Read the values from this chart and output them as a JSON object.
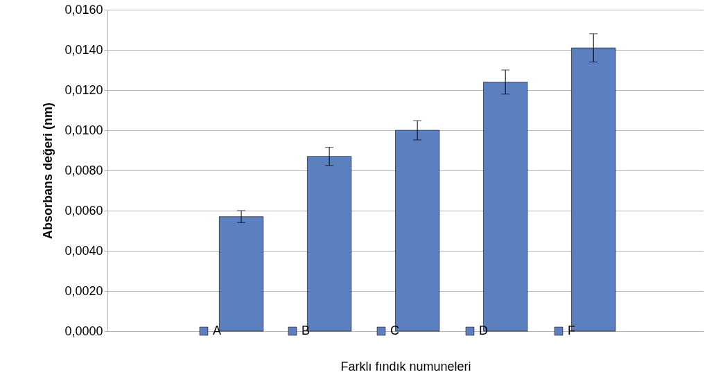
{
  "chart_data": {
    "type": "bar",
    "xlabel": "Farklı fındık numuneleri",
    "ylabel": "Absorbans değeri (nm)",
    "categories": [
      null,
      null,
      null,
      null,
      null,
      null,
      null
    ],
    "series": [
      {
        "name": "A",
        "color": "#5b7fbf",
        "values": [
          null,
          0.0057,
          null,
          null,
          null,
          null,
          null
        ],
        "errors": [
          null,
          0.0003,
          null,
          null,
          null,
          null,
          null
        ]
      },
      {
        "name": "B",
        "color": "#5b7fbf",
        "values": [
          null,
          null,
          0.0087,
          null,
          null,
          null,
          null
        ],
        "errors": [
          null,
          null,
          0.00045,
          null,
          null,
          null,
          null
        ]
      },
      {
        "name": "C",
        "color": "#5b7fbf",
        "values": [
          null,
          null,
          null,
          0.01,
          null,
          null,
          null
        ],
        "errors": [
          null,
          null,
          null,
          0.00048,
          null,
          null,
          null
        ]
      },
      {
        "name": "D",
        "color": "#5b7fbf",
        "values": [
          null,
          null,
          null,
          null,
          0.0124,
          null,
          null
        ],
        "errors": [
          null,
          null,
          null,
          null,
          0.0006,
          null,
          null
        ]
      },
      {
        "name": "F",
        "color": "#5b7fbf",
        "values": [
          null,
          null,
          null,
          null,
          null,
          0.0141,
          null
        ],
        "errors": [
          null,
          null,
          null,
          null,
          null,
          0.0007,
          null
        ]
      }
    ],
    "ylim": [
      0,
      0.016
    ],
    "yticks": [
      {
        "value": 0,
        "label": "0,0000"
      },
      {
        "value": 0.002,
        "label": "0,0020"
      },
      {
        "value": 0.004,
        "label": "0,0040"
      },
      {
        "value": 0.006,
        "label": "0,0060"
      },
      {
        "value": 0.008,
        "label": "0,0080"
      },
      {
        "value": 0.01,
        "label": "0,0100"
      },
      {
        "value": 0.012,
        "label": "0,0120"
      },
      {
        "value": 0.014,
        "label": "0,0140"
      },
      {
        "value": 0.016,
        "label": "0,0160"
      }
    ],
    "grid": "y",
    "legend": "bottom"
  }
}
